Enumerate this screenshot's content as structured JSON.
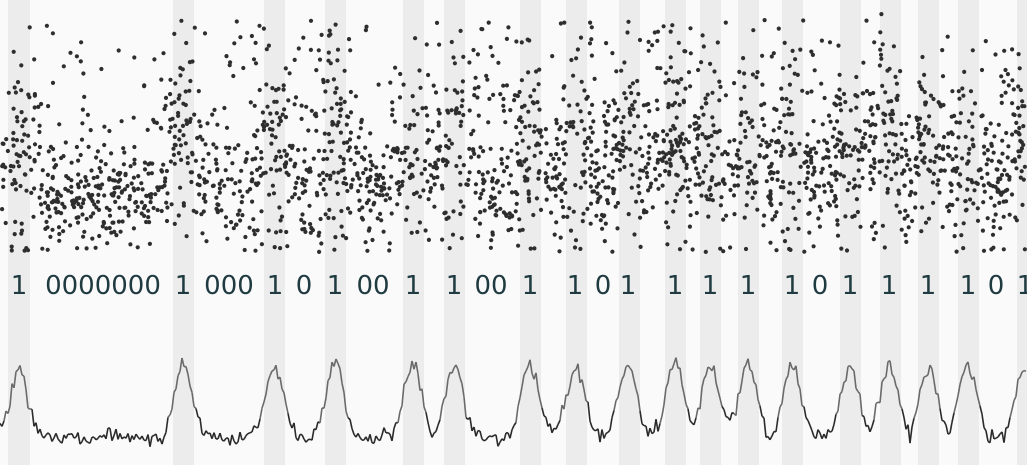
{
  "chart_data": {
    "type": "scatter",
    "title": "",
    "xlabel": "",
    "ylabel": "",
    "grid": false,
    "legend": "none",
    "colors": {
      "points": "#2e2e2e",
      "band": "#ececec",
      "background": "#fafafa",
      "digits": "#1f3a40",
      "signal_low": "#2b2b2b",
      "signal_peak": "#6a6a6a"
    },
    "x_range": [
      0,
      1027
    ],
    "highlight_bands": [
      [
        8,
        30
      ],
      [
        173,
        194
      ],
      [
        264,
        285
      ],
      [
        325,
        346
      ],
      [
        403,
        424
      ],
      [
        444,
        465
      ],
      [
        520,
        541
      ],
      [
        566,
        587
      ],
      [
        619,
        640
      ],
      [
        665,
        686
      ],
      [
        700,
        721
      ],
      [
        738,
        759
      ],
      [
        782,
        803
      ],
      [
        840,
        861
      ],
      [
        880,
        901
      ],
      [
        918,
        939
      ],
      [
        958,
        979
      ],
      [
        1017,
        1027
      ]
    ],
    "bit_labels": [
      {
        "x": 19,
        "text": "1"
      },
      {
        "x": 103,
        "text": "0000000"
      },
      {
        "x": 183,
        "text": "1"
      },
      {
        "x": 229,
        "text": "000"
      },
      {
        "x": 275,
        "text": "1"
      },
      {
        "x": 304,
        "text": "0"
      },
      {
        "x": 335,
        "text": "1"
      },
      {
        "x": 373,
        "text": "00"
      },
      {
        "x": 413,
        "text": "1"
      },
      {
        "x": 454,
        "text": "1"
      },
      {
        "x": 491,
        "text": "00"
      },
      {
        "x": 530,
        "text": "1"
      },
      {
        "x": 575,
        "text": "1"
      },
      {
        "x": 603,
        "text": "0"
      },
      {
        "x": 628,
        "text": "1"
      },
      {
        "x": 675,
        "text": "1"
      },
      {
        "x": 710,
        "text": "1"
      },
      {
        "x": 748,
        "text": "1"
      },
      {
        "x": 792,
        "text": "1"
      },
      {
        "x": 820,
        "text": "0"
      },
      {
        "x": 850,
        "text": "1"
      },
      {
        "x": 889,
        "text": "1"
      },
      {
        "x": 928,
        "text": "1"
      },
      {
        "x": 968,
        "text": "1"
      },
      {
        "x": 996,
        "text": "0"
      },
      {
        "x": 1025,
        "text": "1"
      }
    ],
    "signal_peaks": [
      19,
      183,
      275,
      335,
      413,
      454,
      530,
      575,
      628,
      675,
      710,
      748,
      792,
      850,
      889,
      928,
      968,
      1025
    ],
    "scatter_points_count": 2400
  }
}
